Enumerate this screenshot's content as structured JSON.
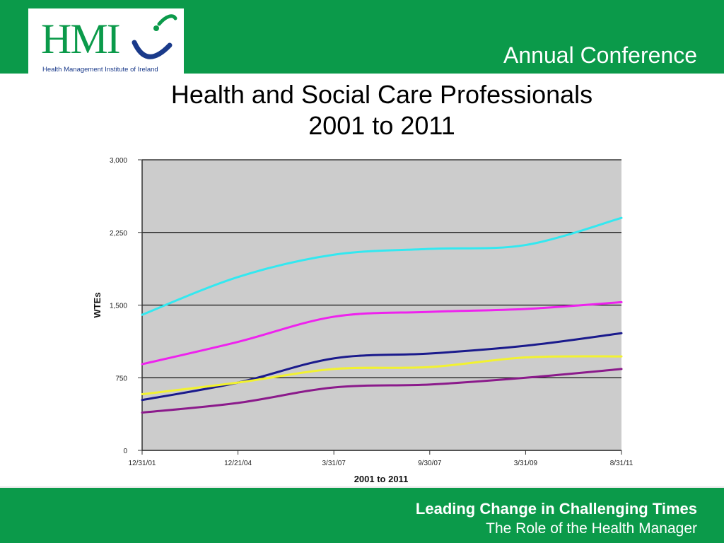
{
  "header": {
    "logo_text": "HMI",
    "logo_caption": "Health Management Institute of Ireland",
    "conference": "Annual Conference"
  },
  "slide": {
    "title_line1": "Health and Social Care Professionals",
    "title_line2": "2001 to 2011"
  },
  "footer": {
    "line1": "Leading Change in Challenging Times",
    "line2": "The Role of the Health Manager"
  },
  "colors": {
    "brand_green": "#0b9a4a",
    "plot_background": "#cccccc"
  },
  "chart_data": {
    "type": "line",
    "title": "",
    "xlabel": "2001 to 2011",
    "ylabel": "WTEs",
    "x": [
      "12/31/01",
      "12/21/04",
      "3/31/07",
      "9/30/07",
      "3/31/09",
      "8/31/11"
    ],
    "ylim": [
      0,
      3000
    ],
    "yticks": [
      0,
      750,
      1500,
      2250,
      3000
    ],
    "ytick_labels": [
      "0",
      "750",
      "1,500",
      "2,250",
      "3,000"
    ],
    "grid": "horizontal",
    "legend": "none",
    "series": [
      {
        "color": "#33e8f0",
        "values": [
          1400,
          1790,
          2020,
          2080,
          2120,
          2400
        ]
      },
      {
        "color": "#ee22ee",
        "values": [
          890,
          1120,
          1380,
          1430,
          1460,
          1530
        ]
      },
      {
        "color": "#1a1a8c",
        "values": [
          520,
          700,
          950,
          1000,
          1080,
          1210
        ]
      },
      {
        "color": "#f2f230",
        "values": [
          580,
          700,
          840,
          860,
          960,
          970
        ]
      },
      {
        "color": "#8b1a8b",
        "values": [
          390,
          490,
          650,
          680,
          750,
          840
        ]
      }
    ]
  }
}
